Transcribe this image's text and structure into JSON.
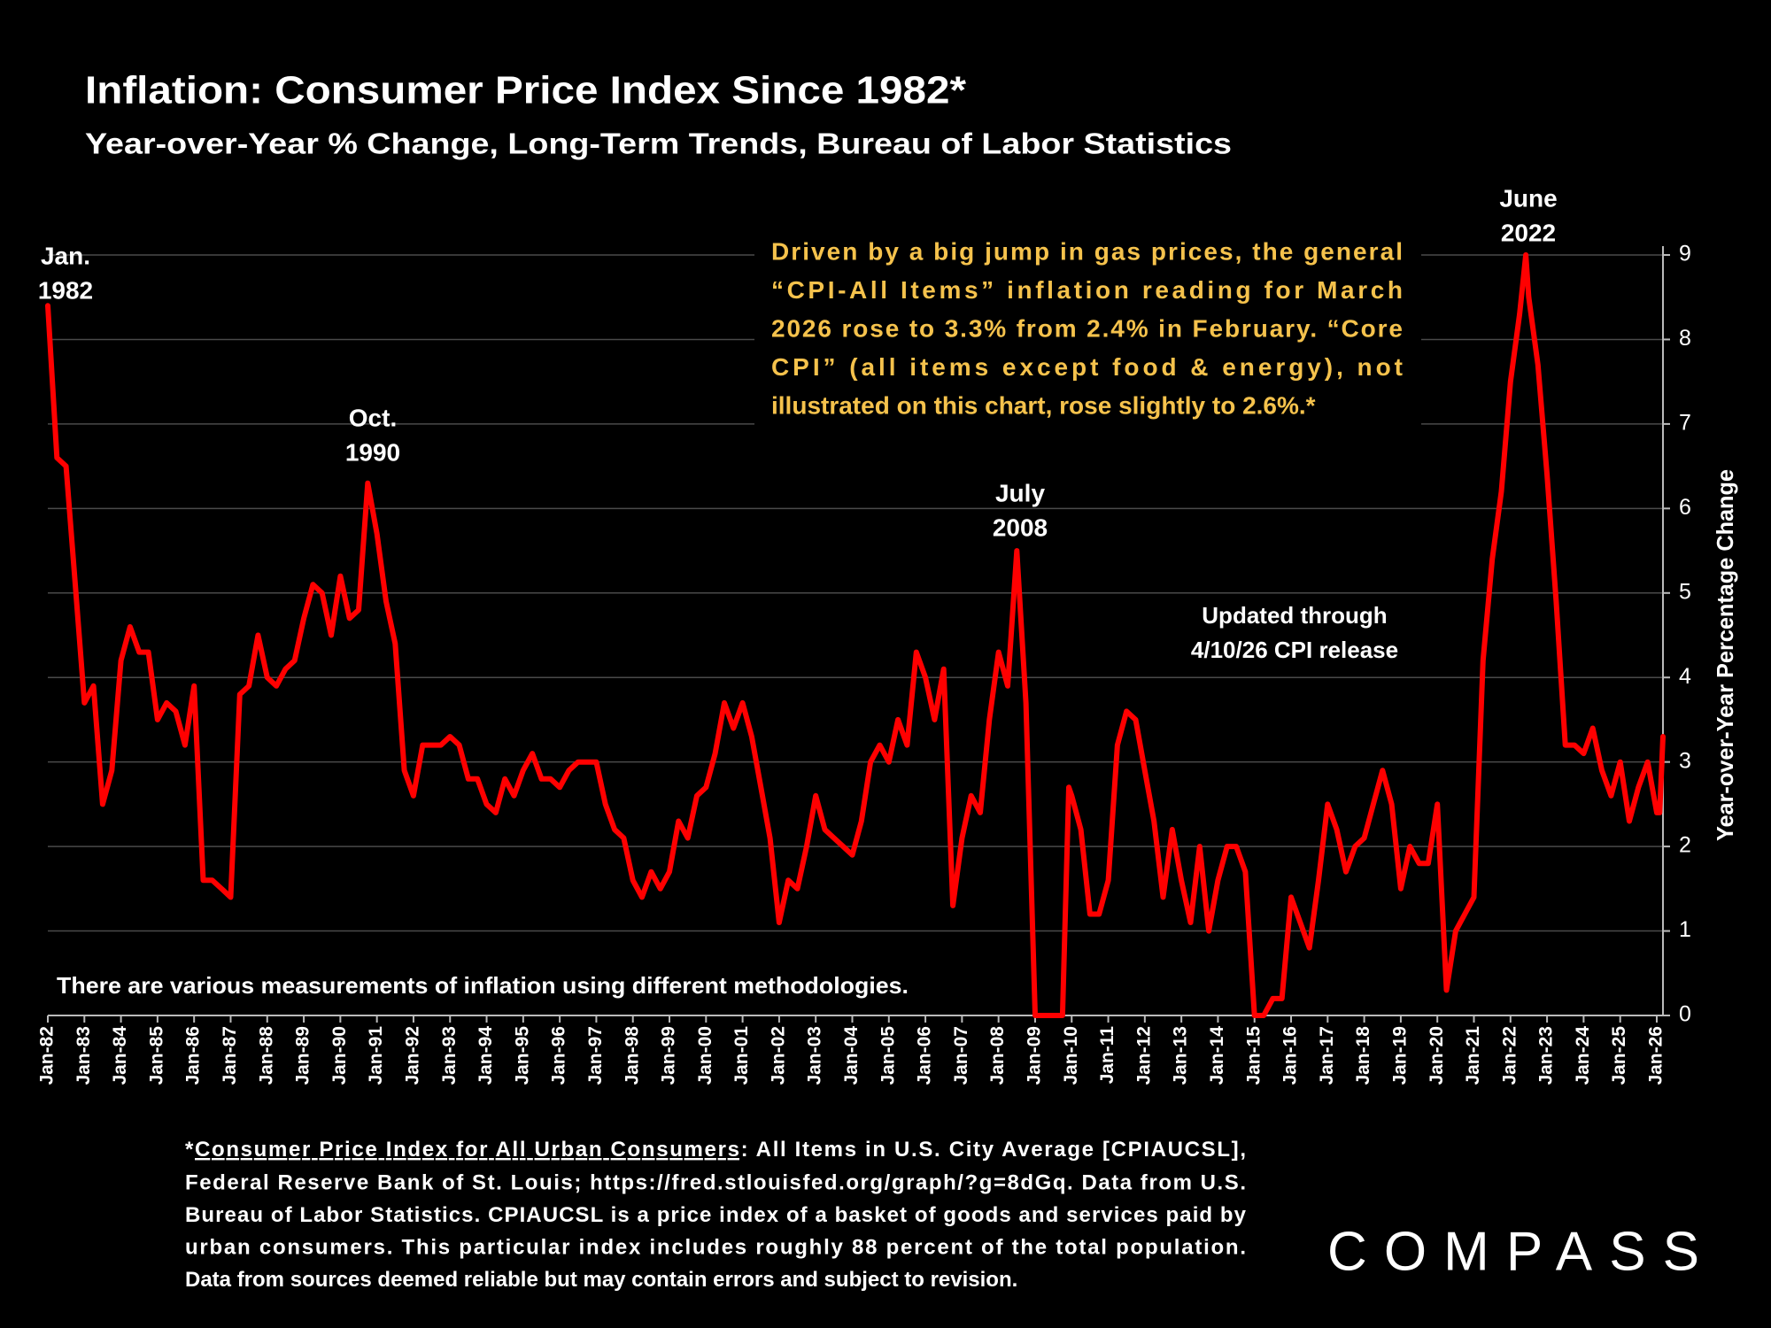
{
  "chart_data": {
    "type": "line",
    "title": "Inflation: Consumer Price Index Since 1982*",
    "subtitle": "Year-over-Year % Change, Long-Term Trends, Bureau of Labor Statistics",
    "y_axis_label": "Year-over-Year Percentage Change",
    "color": "#ff0000",
    "grid": true,
    "x": [
      1982,
      1982.25,
      1982.5,
      1982.75,
      1983,
      1983.25,
      1983.5,
      1983.75,
      1984,
      1984.25,
      1984.5,
      1984.75,
      1985,
      1985.25,
      1985.5,
      1985.75,
      1986,
      1986.25,
      1986.5,
      1986.75,
      1987,
      1987.25,
      1987.5,
      1987.75,
      1988,
      1988.25,
      1988.5,
      1988.75,
      1989,
      1989.25,
      1989.5,
      1989.75,
      1990,
      1990.25,
      1990.5,
      1990.75,
      1991,
      1991.25,
      1991.5,
      1991.75,
      1992,
      1992.25,
      1992.5,
      1992.75,
      1993,
      1993.25,
      1993.5,
      1993.75,
      1994,
      1994.25,
      1994.5,
      1994.75,
      1995,
      1995.25,
      1995.5,
      1995.75,
      1996,
      1996.25,
      1996.5,
      1996.75,
      1997,
      1997.25,
      1997.5,
      1997.75,
      1998,
      1998.25,
      1998.5,
      1998.75,
      1999,
      1999.25,
      1999.5,
      1999.75,
      2000,
      2000.25,
      2000.5,
      2000.75,
      2001,
      2001.25,
      2001.5,
      2001.75,
      2002,
      2002.25,
      2002.5,
      2002.75,
      2003,
      2003.25,
      2003.5,
      2003.75,
      2004,
      2004.25,
      2004.5,
      2004.75,
      2005,
      2005.25,
      2005.5,
      2005.75,
      2006,
      2006.25,
      2006.5,
      2006.75,
      2007,
      2007.25,
      2007.5,
      2007.75,
      2008,
      2008.25,
      2008.5,
      2008.75,
      2009,
      2009.25,
      2009.5,
      2009.75,
      2009.92,
      2010,
      2010.25,
      2010.5,
      2010.75,
      2011,
      2011.25,
      2011.5,
      2011.75,
      2012,
      2012.25,
      2012.5,
      2012.75,
      2013,
      2013.25,
      2013.5,
      2013.75,
      2014,
      2014.25,
      2014.5,
      2014.75,
      2015,
      2015.25,
      2015.5,
      2015.75,
      2016,
      2016.25,
      2016.5,
      2016.75,
      2017,
      2017.25,
      2017.5,
      2017.75,
      2018,
      2018.25,
      2018.5,
      2018.75,
      2019,
      2019.25,
      2019.5,
      2019.75,
      2020,
      2020.25,
      2020.5,
      2020.75,
      2021,
      2021.25,
      2021.5,
      2021.75,
      2022,
      2022.25,
      2022.42,
      2022.5,
      2022.75,
      2023,
      2023.25,
      2023.5,
      2023.75,
      2024,
      2024.25,
      2024.5,
      2024.75,
      2025,
      2025.25,
      2025.5,
      2025.75,
      2026,
      2026.08,
      2026.17
    ],
    "values": [
      8.4,
      6.6,
      6.5,
      5.1,
      3.7,
      3.9,
      2.5,
      2.9,
      4.2,
      4.6,
      4.3,
      4.3,
      3.5,
      3.7,
      3.6,
      3.2,
      3.9,
      1.6,
      1.6,
      1.5,
      1.4,
      3.8,
      3.9,
      4.5,
      4.0,
      3.9,
      4.1,
      4.2,
      4.7,
      5.1,
      5.0,
      4.5,
      5.2,
      4.7,
      4.8,
      6.3,
      5.7,
      4.9,
      4.4,
      2.9,
      2.6,
      3.2,
      3.2,
      3.2,
      3.3,
      3.2,
      2.8,
      2.8,
      2.5,
      2.4,
      2.8,
      2.6,
      2.9,
      3.1,
      2.8,
      2.8,
      2.7,
      2.9,
      3.0,
      3.0,
      3.0,
      2.5,
      2.2,
      2.1,
      1.6,
      1.4,
      1.7,
      1.5,
      1.7,
      2.3,
      2.1,
      2.6,
      2.7,
      3.1,
      3.7,
      3.4,
      3.7,
      3.3,
      2.7,
      2.1,
      1.1,
      1.6,
      1.5,
      2.0,
      2.6,
      2.2,
      2.1,
      2.0,
      1.9,
      2.3,
      3.0,
      3.2,
      3.0,
      3.5,
      3.2,
      4.3,
      4.0,
      3.5,
      4.1,
      1.3,
      2.1,
      2.6,
      2.4,
      3.5,
      4.3,
      3.9,
      5.5,
      3.7,
      0,
      0,
      0,
      0,
      2.7,
      2.6,
      2.2,
      1.2,
      1.2,
      1.6,
      3.2,
      3.6,
      3.5,
      2.9,
      2.3,
      1.4,
      2.2,
      1.6,
      1.1,
      2.0,
      1.0,
      1.6,
      2.0,
      2.0,
      1.7,
      0,
      0,
      0.2,
      0.2,
      1.4,
      1.1,
      0.8,
      1.6,
      2.5,
      2.2,
      1.7,
      2.0,
      2.1,
      2.5,
      2.9,
      2.5,
      1.5,
      2.0,
      1.8,
      1.8,
      2.5,
      0.3,
      1.0,
      1.2,
      1.4,
      4.2,
      5.4,
      6.2,
      7.5,
      8.3,
      9.0,
      8.5,
      7.7,
      6.4,
      4.9,
      3.2,
      3.2,
      3.1,
      3.4,
      2.9,
      2.6,
      3.0,
      2.3,
      2.7,
      3.0,
      2.4,
      2.4,
      3.3
    ],
    "xlim": [
      1982,
      2026.17
    ],
    "xticks": [
      {
        "value": 1982,
        "label": "Jan-82"
      },
      {
        "value": 1983,
        "label": "Jan-83"
      },
      {
        "value": 1984,
        "label": "Jan-84"
      },
      {
        "value": 1985,
        "label": "Jan-85"
      },
      {
        "value": 1986,
        "label": "Jan-86"
      },
      {
        "value": 1987,
        "label": "Jan-87"
      },
      {
        "value": 1988,
        "label": "Jan-88"
      },
      {
        "value": 1989,
        "label": "Jan-89"
      },
      {
        "value": 1990,
        "label": "Jan-90"
      },
      {
        "value": 1991,
        "label": "Jan-91"
      },
      {
        "value": 1992,
        "label": "Jan-92"
      },
      {
        "value": 1993,
        "label": "Jan-93"
      },
      {
        "value": 1994,
        "label": "Jan-94"
      },
      {
        "value": 1995,
        "label": "Jan-95"
      },
      {
        "value": 1996,
        "label": "Jan-96"
      },
      {
        "value": 1997,
        "label": "Jan-97"
      },
      {
        "value": 1998,
        "label": "Jan-98"
      },
      {
        "value": 1999,
        "label": "Jan-99"
      },
      {
        "value": 2000,
        "label": "Jan-00"
      },
      {
        "value": 2001,
        "label": "Jan-01"
      },
      {
        "value": 2002,
        "label": "Jan-02"
      },
      {
        "value": 2003,
        "label": "Jan-03"
      },
      {
        "value": 2004,
        "label": "Jan-04"
      },
      {
        "value": 2005,
        "label": "Jan-05"
      },
      {
        "value": 2006,
        "label": "Jan-06"
      },
      {
        "value": 2007,
        "label": "Jan-07"
      },
      {
        "value": 2008,
        "label": "Jan-08"
      },
      {
        "value": 2009,
        "label": "Jan-09"
      },
      {
        "value": 2010,
        "label": "Jan-10"
      },
      {
        "value": 2011,
        "label": "Jan-11"
      },
      {
        "value": 2012,
        "label": "Jan-12"
      },
      {
        "value": 2013,
        "label": "Jan-13"
      },
      {
        "value": 2014,
        "label": "Jan-14"
      },
      {
        "value": 2015,
        "label": "Jan-15"
      },
      {
        "value": 2016,
        "label": "Jan-16"
      },
      {
        "value": 2017,
        "label": "Jan-17"
      },
      {
        "value": 2018,
        "label": "Jan-18"
      },
      {
        "value": 2019,
        "label": "Jan-19"
      },
      {
        "value": 2020,
        "label": "Jan-20"
      },
      {
        "value": 2021,
        "label": "Jan-21"
      },
      {
        "value": 2022,
        "label": "Jan-22"
      },
      {
        "value": 2023,
        "label": "Jan-23"
      },
      {
        "value": 2024,
        "label": "Jan-24"
      },
      {
        "value": 2025,
        "label": "Jan-25"
      },
      {
        "value": 2026,
        "label": "Jan-26"
      }
    ],
    "ylim": [
      0,
      9
    ],
    "yticks": [
      0,
      1,
      2,
      3,
      4,
      5,
      6,
      7,
      8,
      9
    ],
    "annotations": [
      [
        "Jan.",
        "1982"
      ],
      [
        "Oct.",
        "1990"
      ],
      [
        "July",
        "2008"
      ],
      [
        "June",
        "2022"
      ]
    ],
    "note_lines": [
      "Driven by a big jump in gas prices, the general",
      "“CPI-All Items” inflation reading for March",
      "2026 rose to 3.3% from 2.4% in February. “Core",
      "CPI” (all items except food & energy), not",
      "illustrated on this chart, rose slightly to 2.6%.*"
    ],
    "updated": [
      "Updated through",
      "4/10/26 CPI release"
    ],
    "footnote": "There are various measurements of inflation using different methodologies.",
    "source_first_line": [
      "*",
      "Consumer Price Index for All Urban Consumers",
      ": All Items in U.S. City Average [CPIAUCSL],"
    ],
    "source_lines": [
      "Federal Reserve Bank of St. Louis; https://fred.stlouisfed.org/graph/?g=8dGq. Data from U.S.",
      "Bureau of Labor Statistics. CPIAUCSL is a price index of a basket of goods and services paid by",
      "urban consumers. This particular index includes roughly 88 percent of the total population.",
      "Data from sources deemed reliable but may contain errors and subject to revision."
    ],
    "logo": "COMPASS"
  }
}
